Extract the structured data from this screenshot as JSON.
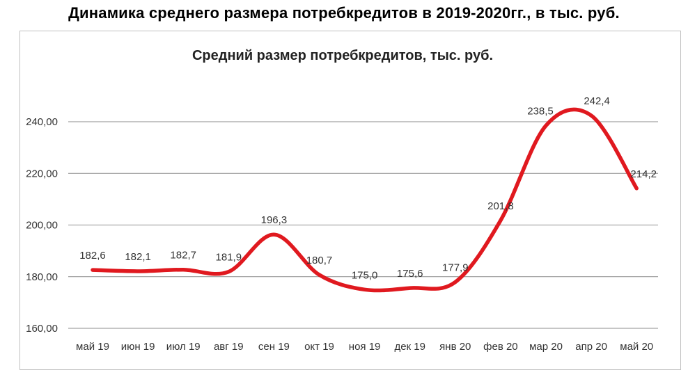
{
  "page_title": "Динамика среднего размера потребкредитов в 2019-2020гг., в тыс. руб.",
  "chart_data": {
    "type": "line",
    "title": "Средний размер потребкредитов,  тыс. руб.",
    "categories": [
      "май 19",
      "июн 19",
      "июл 19",
      "авг 19",
      "сен 19",
      "окт 19",
      "ноя 19",
      "дек 19",
      "янв 20",
      "фев 20",
      "мар 20",
      "апр 20",
      "май 20"
    ],
    "values": [
      182.6,
      182.1,
      182.7,
      181.9,
      196.3,
      180.7,
      175.0,
      175.6,
      177.9,
      201.8,
      238.5,
      242.4,
      214.2
    ],
    "data_labels": [
      "182,6",
      "182,1",
      "182,7",
      "181,9",
      "196,3",
      "180,7",
      "175,0",
      "175,6",
      "177,9",
      "201,8",
      "238,5",
      "242,4",
      "214,2"
    ],
    "y_ticks": [
      160,
      180,
      200,
      220,
      240
    ],
    "y_tick_labels": [
      "160,00",
      "180,00",
      "200,00",
      "220,00",
      "240,00"
    ],
    "ylim": [
      160,
      248
    ],
    "grid": true,
    "series_color": "#e0191f",
    "gridline_color": "#8c8c8c"
  }
}
